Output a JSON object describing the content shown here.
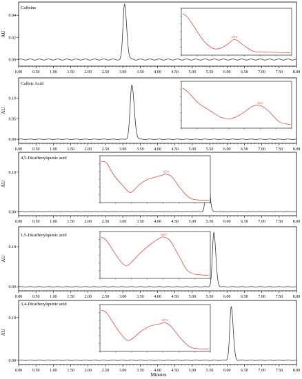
{
  "x_axis_label": "Minutes",
  "x_ticks": [
    "0.00",
    "0.50",
    "1.00",
    "1.50",
    "2.00",
    "2.50",
    "3.00",
    "3.50",
    "4.00",
    "4.50",
    "5.00",
    "5.50",
    "6.00",
    "6.50",
    "7.00",
    "7.50",
    "8.00"
  ],
  "chart_data": [
    {
      "type": "line",
      "title": "Caffeine",
      "ylabel": "AU",
      "xlim": [
        0,
        8
      ],
      "ylim": [
        -0.006,
        0.052
      ],
      "yticks": [
        "0.00",
        "0.02",
        "0.04"
      ],
      "ytick_values": [
        0.0,
        0.02,
        0.04
      ],
      "peak": {
        "x": 3.05,
        "height": 0.05,
        "width": 0.045
      },
      "inset": {
        "peak_label": "272.9",
        "curve": "caffeine"
      }
    },
    {
      "type": "line",
      "title": "Caffeic Acid",
      "ylabel": "AU",
      "xlim": [
        0,
        8
      ],
      "ylim": [
        -0.01,
        0.15
      ],
      "yticks": [
        "0.00",
        "0.05",
        "0.10"
      ],
      "ytick_values": [
        0.0,
        0.05,
        0.1
      ],
      "peak": {
        "x": 3.26,
        "height": 0.132,
        "width": 0.05
      },
      "inset": {
        "peak_label": "324.1",
        "curve": "caffeic"
      }
    },
    {
      "type": "line",
      "title": "4,5-Dicaffeoylquinic acid",
      "ylabel": "AU",
      "xlim": [
        0,
        8
      ],
      "ylim": [
        -0.01,
        0.15
      ],
      "yticks": [
        "0.00",
        "0.10"
      ],
      "ytick_values": [
        0.0,
        0.1
      ],
      "peak": {
        "x": 5.43,
        "height": 0.135,
        "width": 0.042
      },
      "inset": {
        "peak_label": "325.6",
        "curve": "dcq45"
      }
    },
    {
      "type": "line",
      "title": "1,5-Dicaffeoylquinic acid",
      "ylabel": "AU",
      "xlim": [
        0,
        8
      ],
      "ylim": [
        -0.01,
        0.15
      ],
      "yticks": [
        "0.00",
        "0.10"
      ],
      "ytick_values": [
        0.0,
        0.1
      ],
      "peak": {
        "x": 5.62,
        "height": 0.135,
        "width": 0.042
      },
      "inset": {
        "peak_label": "326.7",
        "curve": "dcq15"
      }
    },
    {
      "type": "line",
      "title": "3,4-Dicaffeoylquinic acid",
      "ylabel": "AU",
      "xlim": [
        0,
        8
      ],
      "ylim": [
        -0.01,
        0.14
      ],
      "yticks": [
        "0.00",
        "0.10"
      ],
      "ytick_values": [
        0.0,
        0.1
      ],
      "peak": {
        "x": 6.12,
        "height": 0.125,
        "width": 0.042
      },
      "inset": {
        "peak_label": "327.9",
        "curve": "dcq34"
      }
    }
  ]
}
